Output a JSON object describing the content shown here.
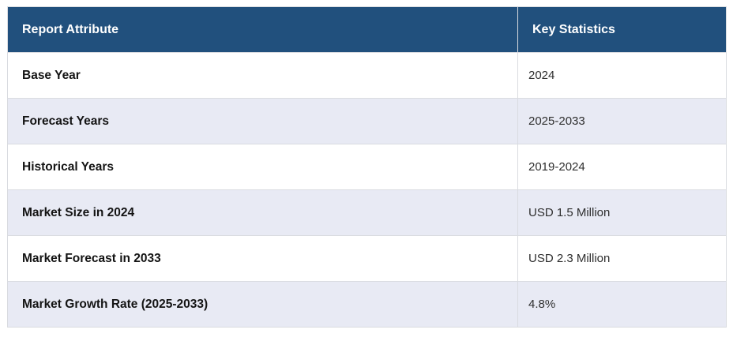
{
  "chart_data": {
    "type": "table",
    "title": "",
    "columns": [
      "Report Attribute",
      "Key Statistics"
    ],
    "rows": [
      [
        "Base Year",
        "2024"
      ],
      [
        "Forecast Years",
        "2025-2033"
      ],
      [
        "Historical Years",
        "2019-2024"
      ],
      [
        "Market Size in 2024",
        "USD 1.5 Million"
      ],
      [
        "Market Forecast in 2033",
        "USD 2.3 Million"
      ],
      [
        "Market Growth Rate (2025-2033)",
        "4.8%"
      ]
    ]
  },
  "colors": {
    "header_bg": "#21507D",
    "header_text": "#FFFFFF",
    "row_bg": "#FFFFFF",
    "row_alt_bg": "#E8EAF4",
    "border": "#D9DBE0",
    "attribute_text": "#141414",
    "value_text": "#2E2E2E"
  }
}
